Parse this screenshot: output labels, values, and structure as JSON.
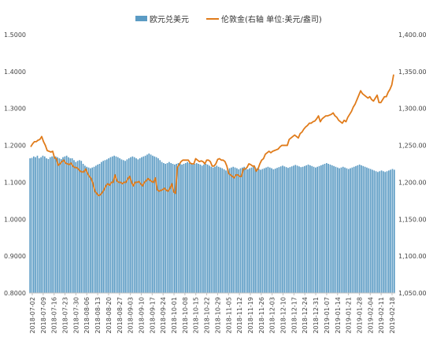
{
  "chart_data": {
    "type": "bar+line",
    "legend": [
      {
        "label": "欧元兑美元",
        "color": "#5b9bc4",
        "kind": "bar"
      },
      {
        "label": "伦敦金(右轴 单位:美元/盎司)",
        "color": "#e07b1a",
        "kind": "line"
      }
    ],
    "left_axis": {
      "min": 0.8,
      "max": 1.5,
      "ticks": [
        "0.8000",
        "0.9000",
        "1.0000",
        "1.1000",
        "1.2000",
        "1.3000",
        "1.4000",
        "1.5000"
      ]
    },
    "right_axis": {
      "min": 1050,
      "max": 1400,
      "ticks": [
        "1,050.00",
        "1,100.00",
        "1,150.00",
        "1,200.00",
        "1,250.00",
        "1,300.00",
        "1,350.00",
        "1,400.00"
      ]
    },
    "x_tick_labels": [
      "2018-07-02",
      "2018-07-09",
      "2018-07-16",
      "2018-07-23",
      "2018-07-30",
      "2018-08-06",
      "2018-08-13",
      "2018-08-20",
      "2018-08-27",
      "2018-09-03",
      "2018-09-10",
      "2018-09-17",
      "2018-09-24",
      "2018-10-01",
      "2018-10-08",
      "2018-10-15",
      "2018-10-22",
      "2018-10-29",
      "2018-11-05",
      "2018-11-12",
      "2018-11-19",
      "2018-11-26",
      "2018-12-03",
      "2018-12-10",
      "2018-12-17",
      "2018-12-24",
      "2018-12-31",
      "2019-01-07",
      "2019-01-14",
      "2019-01-21",
      "2019-01-28",
      "2019-02-04",
      "2019-02-11",
      "2019-02-18"
    ],
    "eurusd": [
      1.165,
      1.166,
      1.17,
      1.168,
      1.172,
      1.165,
      1.168,
      1.172,
      1.17,
      1.165,
      1.163,
      1.168,
      1.17,
      1.172,
      1.17,
      1.168,
      1.165,
      1.163,
      1.168,
      1.17,
      1.172,
      1.168,
      1.165,
      1.165,
      1.16,
      1.155,
      1.158,
      1.16,
      1.158,
      1.15,
      1.145,
      1.142,
      1.14,
      1.138,
      1.14,
      1.142,
      1.145,
      1.148,
      1.15,
      1.155,
      1.158,
      1.16,
      1.162,
      1.165,
      1.168,
      1.17,
      1.172,
      1.17,
      1.168,
      1.165,
      1.162,
      1.16,
      1.158,
      1.162,
      1.165,
      1.168,
      1.17,
      1.168,
      1.165,
      1.162,
      1.165,
      1.168,
      1.17,
      1.172,
      1.175,
      1.178,
      1.175,
      1.172,
      1.17,
      1.168,
      1.165,
      1.16,
      1.155,
      1.152,
      1.15,
      1.152,
      1.155,
      1.152,
      1.15,
      1.148,
      1.15,
      1.152,
      1.15,
      1.148,
      1.15,
      1.152,
      1.155,
      1.152,
      1.15,
      1.148,
      1.15,
      1.152,
      1.15,
      1.148,
      1.145,
      1.148,
      1.15,
      1.148,
      1.145,
      1.142,
      1.14,
      1.142,
      1.145,
      1.142,
      1.14,
      1.138,
      1.135,
      1.132,
      1.135,
      1.138,
      1.14,
      1.142,
      1.14,
      1.138,
      1.135,
      1.138,
      1.14,
      1.142,
      1.138,
      1.135,
      1.138,
      1.14,
      1.142,
      1.14,
      1.138,
      1.136,
      1.134,
      1.136,
      1.138,
      1.14,
      1.142,
      1.14,
      1.138,
      1.135,
      1.137,
      1.139,
      1.141,
      1.143,
      1.145,
      1.143,
      1.141,
      1.139,
      1.141,
      1.143,
      1.145,
      1.147,
      1.145,
      1.143,
      1.141,
      1.142,
      1.144,
      1.146,
      1.148,
      1.146,
      1.144,
      1.142,
      1.14,
      1.142,
      1.144,
      1.146,
      1.148,
      1.15,
      1.152,
      1.15,
      1.148,
      1.146,
      1.144,
      1.142,
      1.14,
      1.138,
      1.14,
      1.142,
      1.14,
      1.138,
      1.136,
      1.138,
      1.14,
      1.142,
      1.144,
      1.146,
      1.148,
      1.146,
      1.144,
      1.142,
      1.14,
      1.138,
      1.136,
      1.134,
      1.132,
      1.13,
      1.128,
      1.13,
      1.132,
      1.13,
      1.128,
      1.13,
      1.132,
      1.134,
      1.136,
      1.134
    ],
    "gold": [
      1248,
      1252,
      1255,
      1255,
      1257,
      1258,
      1262,
      1255,
      1250,
      1243,
      1242,
      1241,
      1242,
      1233,
      1232,
      1223,
      1225,
      1228,
      1230,
      1226,
      1225,
      1224,
      1226,
      1222,
      1220,
      1220,
      1218,
      1215,
      1214,
      1214,
      1218,
      1212,
      1208,
      1205,
      1198,
      1188,
      1185,
      1182,
      1183,
      1186,
      1190,
      1195,
      1198,
      1196,
      1200,
      1200,
      1210,
      1202,
      1200,
      1200,
      1198,
      1200,
      1200,
      1205,
      1208,
      1200,
      1195,
      1200,
      1200,
      1201,
      1198,
      1195,
      1200,
      1202,
      1205,
      1203,
      1201,
      1200,
      1206,
      1190,
      1188,
      1189,
      1190,
      1192,
      1189,
      1188,
      1192,
      1198,
      1187,
      1185,
      1220,
      1224,
      1228,
      1230,
      1230,
      1230,
      1230,
      1226,
      1225,
      1225,
      1232,
      1230,
      1228,
      1229,
      1228,
      1225,
      1230,
      1230,
      1228,
      1222,
      1222,
      1225,
      1231,
      1232,
      1230,
      1230,
      1228,
      1222,
      1212,
      1210,
      1208,
      1206,
      1210,
      1210,
      1208,
      1208,
      1218,
      1218,
      1220,
      1225,
      1224,
      1222,
      1222,
      1215,
      1218,
      1225,
      1230,
      1232,
      1238,
      1240,
      1242,
      1240,
      1242,
      1243,
      1244,
      1245,
      1248,
      1250,
      1250,
      1250,
      1250,
      1258,
      1260,
      1262,
      1264,
      1262,
      1260,
      1266,
      1268,
      1272,
      1275,
      1277,
      1280,
      1280,
      1282,
      1283,
      1286,
      1290,
      1282,
      1286,
      1288,
      1290,
      1290,
      1291,
      1292,
      1294,
      1290,
      1288,
      1284,
      1282,
      1280,
      1284,
      1282,
      1288,
      1292,
      1296,
      1302,
      1306,
      1312,
      1318,
      1324,
      1320,
      1318,
      1316,
      1314,
      1316,
      1312,
      1310,
      1314,
      1318,
      1308,
      1308,
      1312,
      1316,
      1316,
      1322,
      1326,
      1332,
      1346
    ]
  }
}
